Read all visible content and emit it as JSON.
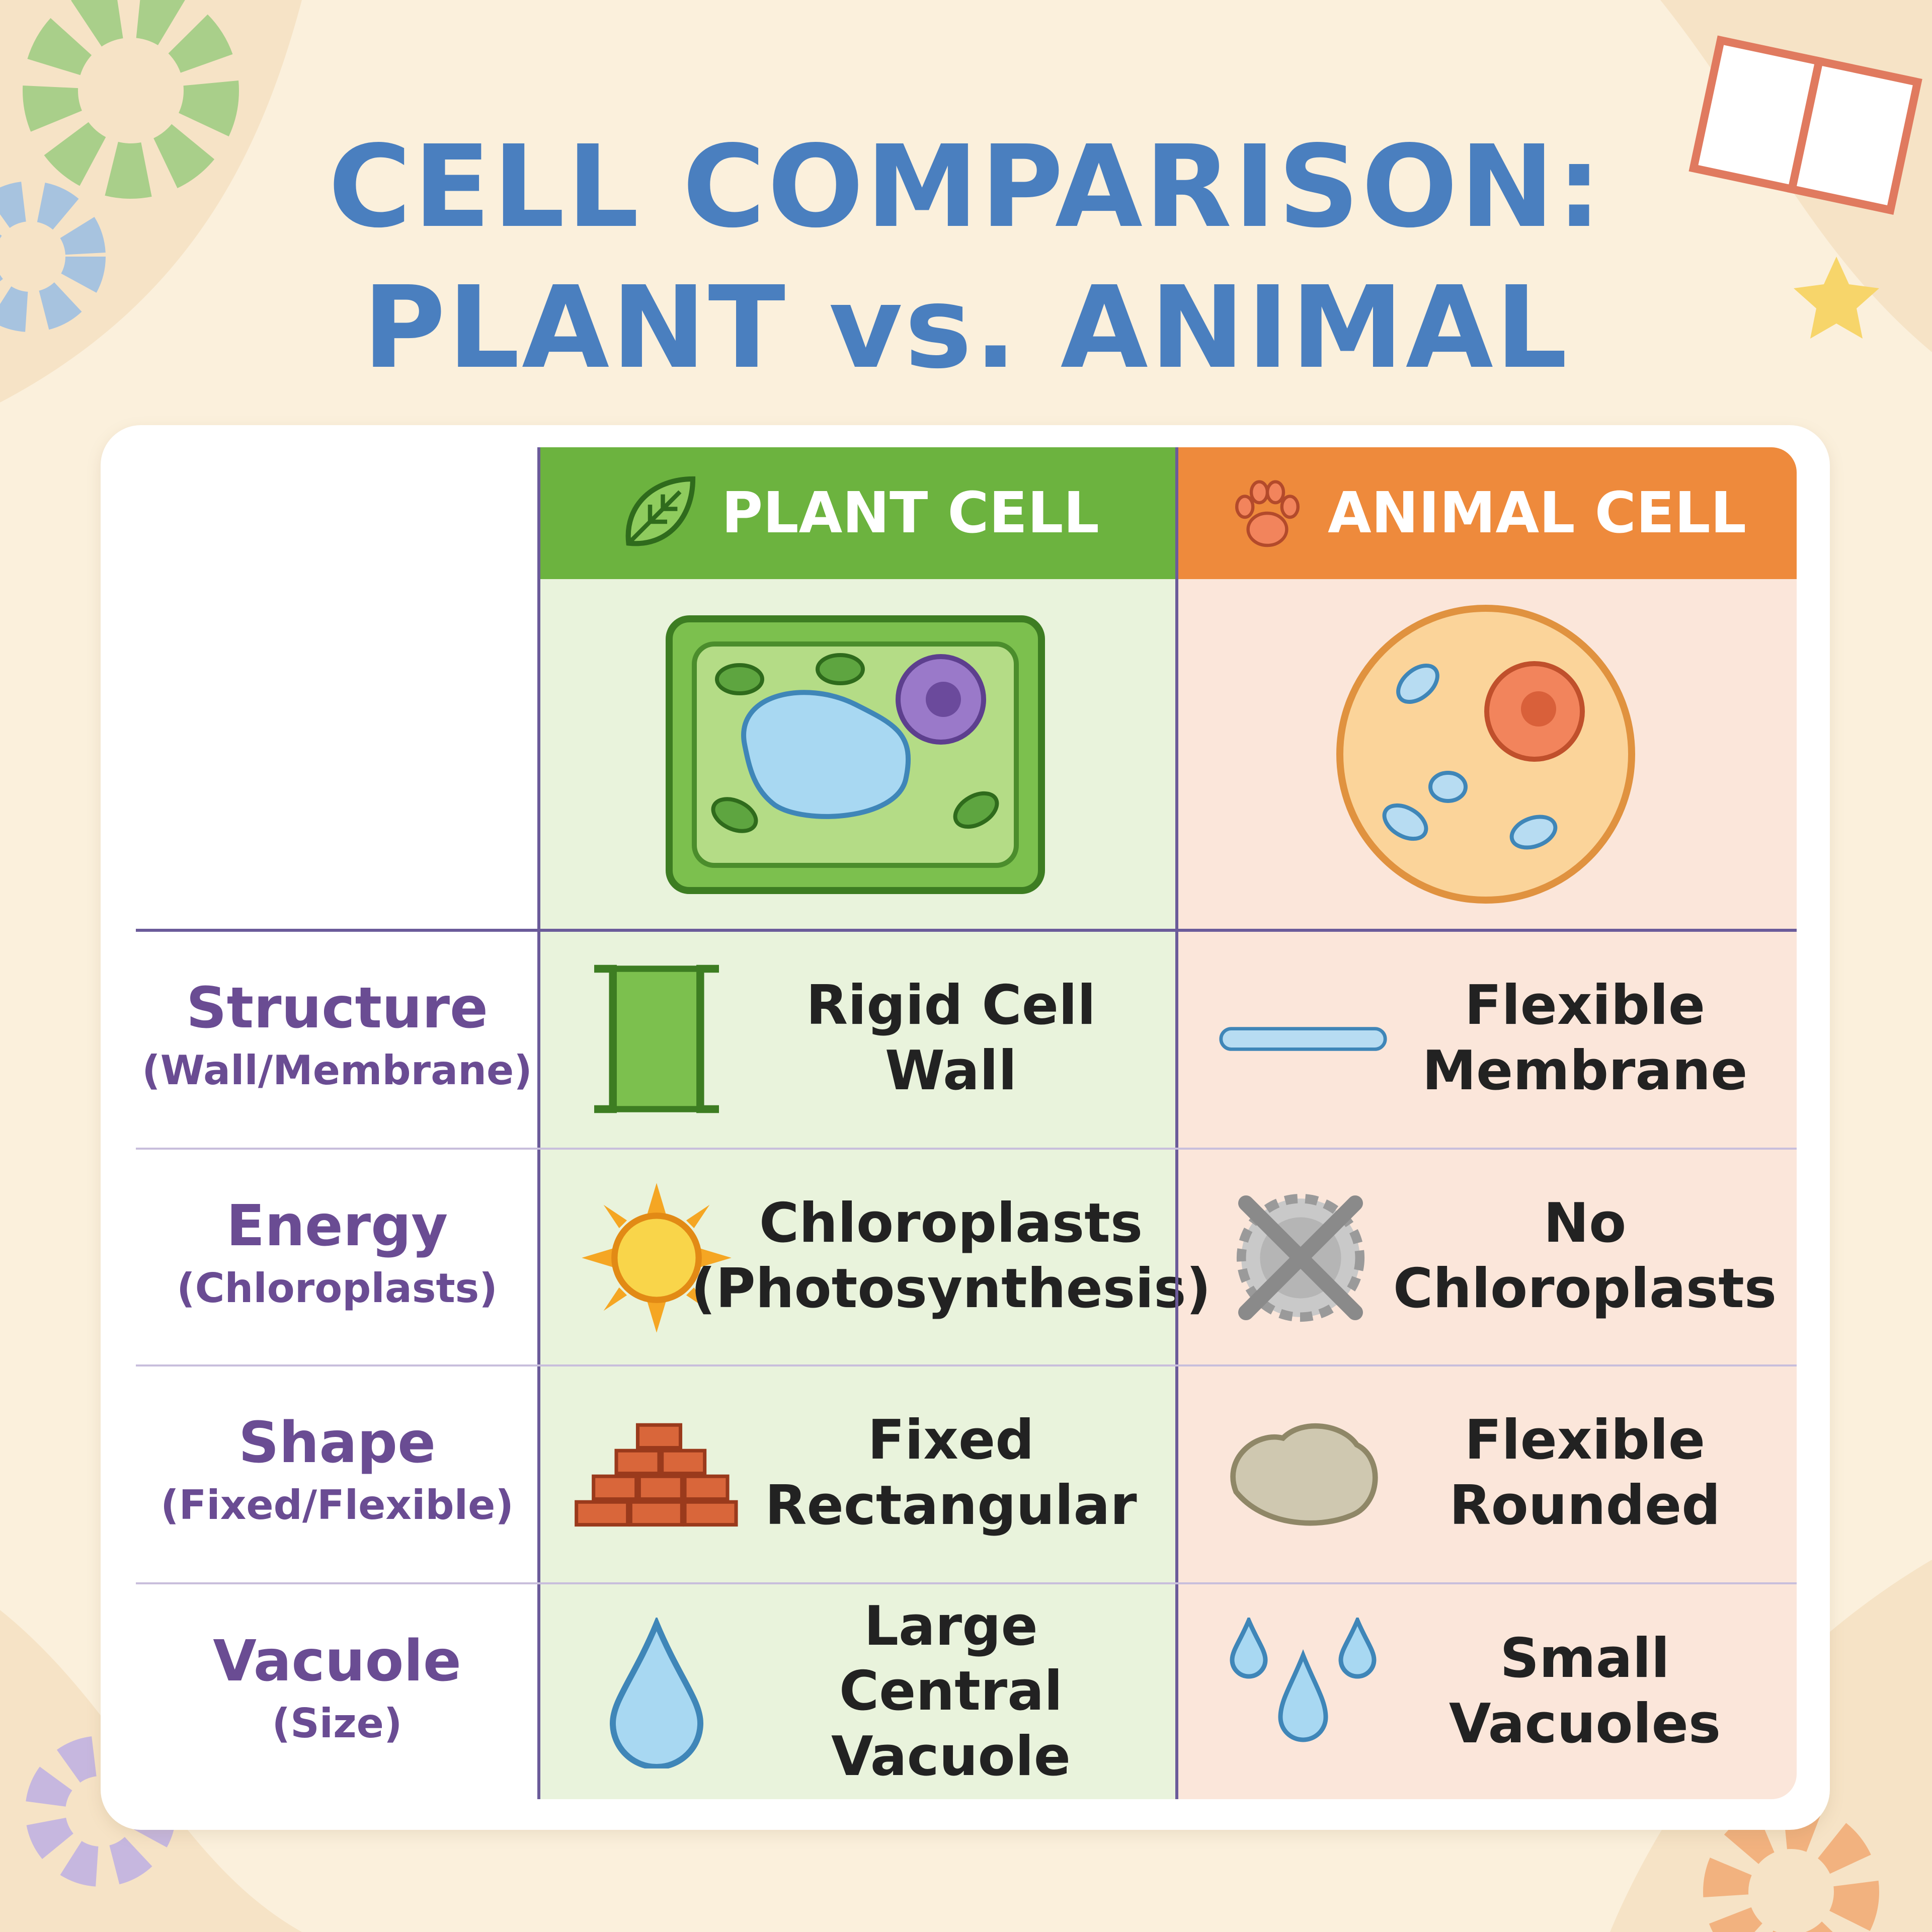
{
  "header": {
    "title_lines": [
      "CELL COMPARISON:",
      "PLANT vs. ANIMAL"
    ]
  },
  "table": {
    "columns": [
      "PLANT CELL",
      "ANIMAL CELL"
    ],
    "rows": [
      {
        "label": "Structure",
        "sublabel": "(Wall/Membrane)",
        "plant": [
          "Rigid Cell Wall"
        ],
        "animal": [
          "Flexible",
          "Membrane"
        ]
      },
      {
        "label": "Energy",
        "sublabel": "(Chloroplasts)",
        "plant": [
          "Chloroplasts",
          "(Photosynthesis)"
        ],
        "animal": [
          "No",
          "Chloroplasts"
        ]
      },
      {
        "label": "Shape",
        "sublabel": "(Fixed/Flexible)",
        "plant": [
          "Fixed",
          "Rectangular"
        ],
        "animal": [
          "Flexible",
          "Rounded"
        ]
      },
      {
        "label": "Vacuole",
        "sublabel": "(Size)",
        "plant": [
          "Large Central",
          "Vacuole"
        ],
        "animal": [
          "Small",
          "Vacuoles"
        ]
      }
    ]
  }
}
